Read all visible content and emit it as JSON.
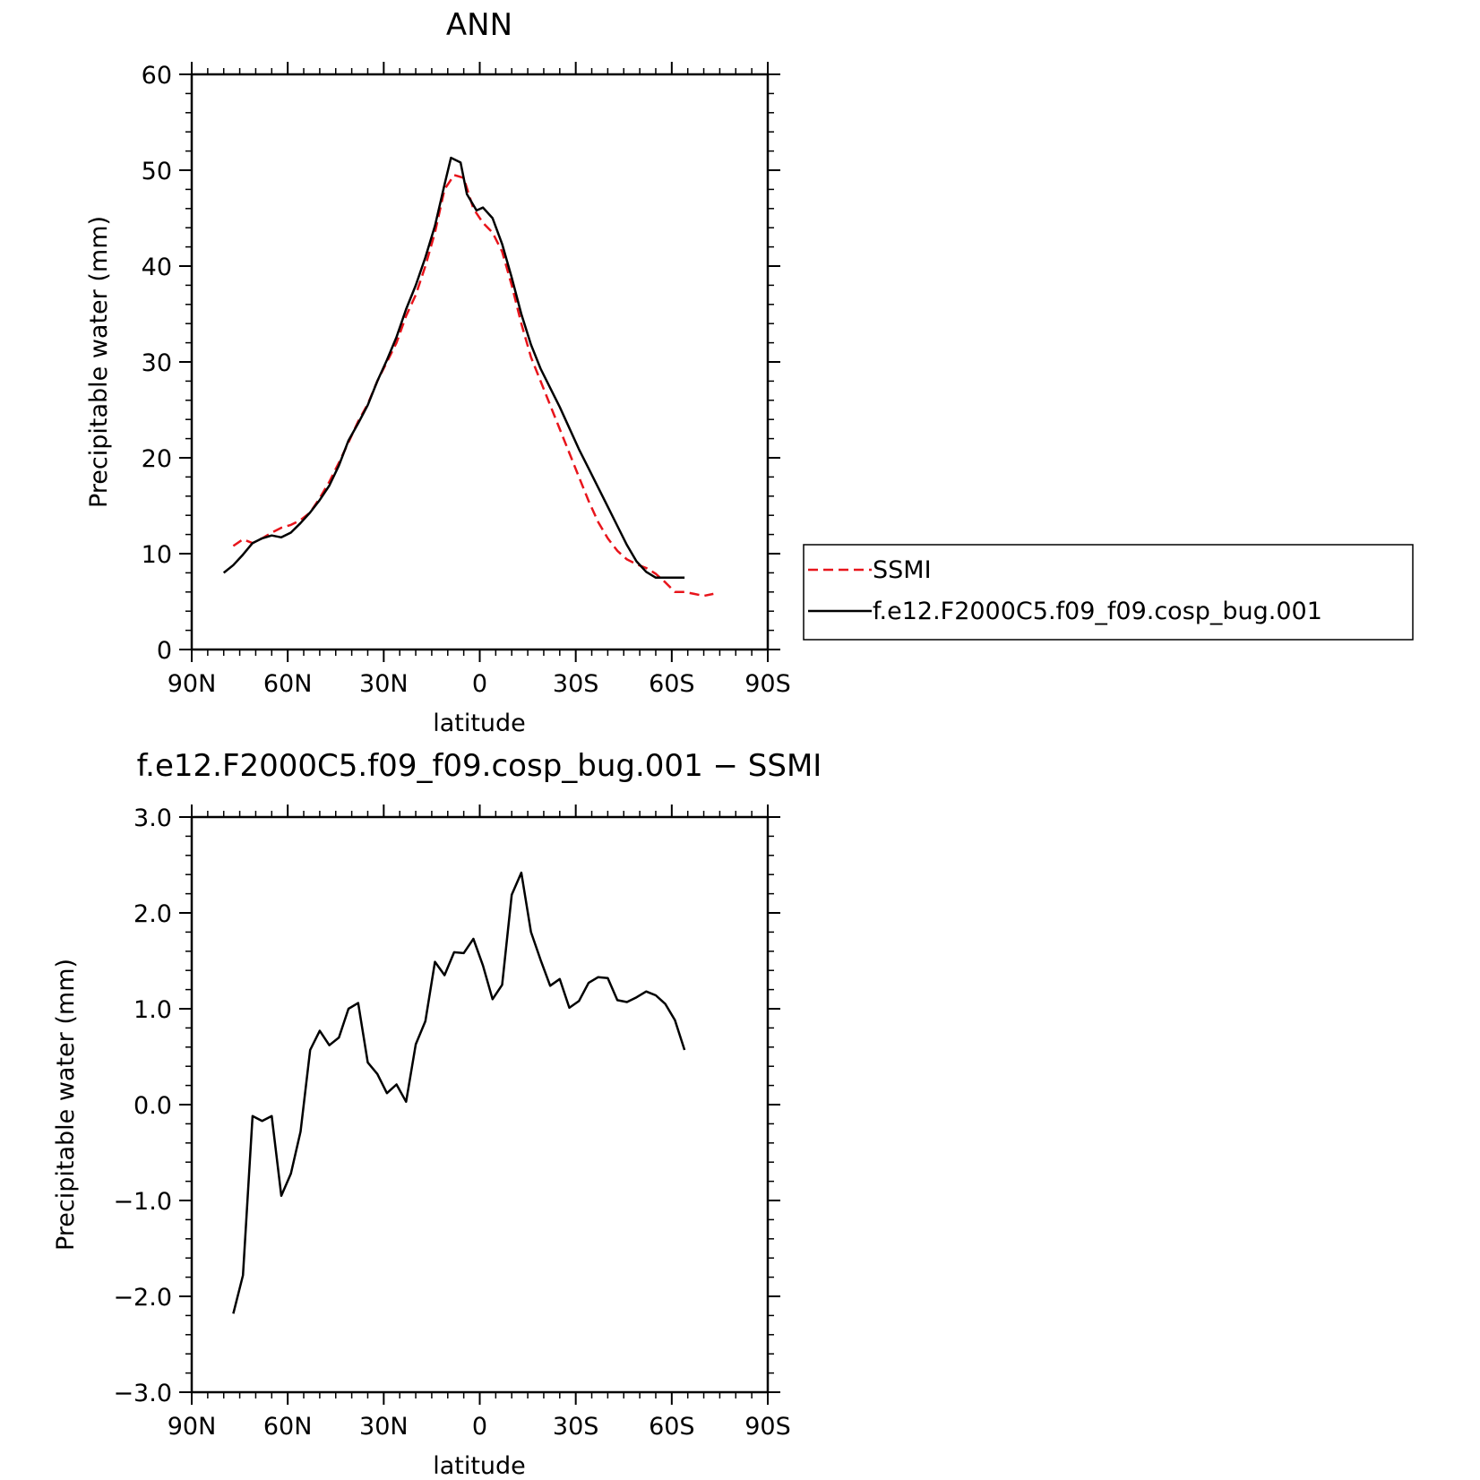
{
  "colors": {
    "ssmi": "#e8141b",
    "model": "#000000"
  },
  "chart_data": [
    {
      "type": "line",
      "title": "ANN",
      "xlabel": "latitude",
      "ylabel": "Precipitable water (mm)",
      "xlim": [
        90,
        -90
      ],
      "ylim": [
        0,
        60
      ],
      "xticks": [
        90,
        60,
        30,
        0,
        -30,
        -60,
        -90
      ],
      "xtick_labels": [
        "90N",
        "60N",
        "30N",
        "0",
        "30S",
        "60S",
        "90S"
      ],
      "yticks": [
        0,
        10,
        20,
        30,
        40,
        50,
        60
      ],
      "ytick_labels": [
        "0",
        "10",
        "20",
        "30",
        "40",
        "50",
        "60"
      ],
      "legend": {
        "placement": "right",
        "entries": [
          "SSMI",
          "f.e12.F2000C5.f09_f09.cosp_bug.001"
        ]
      },
      "series": [
        {
          "name": "SSMI",
          "style": "dashed",
          "x": [
            77,
            74,
            71,
            68,
            65,
            62,
            59,
            56,
            53,
            50,
            47,
            44,
            41,
            38,
            35,
            32,
            29,
            26,
            23,
            20,
            17,
            14,
            11,
            8,
            5,
            2,
            -1,
            -4,
            -7,
            -10,
            -13,
            -16,
            -19,
            -22,
            -25,
            -28,
            -31,
            -34,
            -37,
            -40,
            -43,
            -46,
            -49,
            -52,
            -55,
            -58,
            -61,
            -64,
            -67,
            -70,
            -73
          ],
          "y": [
            10.8,
            11.5,
            11.1,
            11.6,
            12.2,
            12.7,
            13.0,
            13.5,
            14.3,
            15.8,
            17.5,
            19.5,
            21.6,
            23.8,
            25.6,
            28.0,
            30.0,
            32.0,
            34.8,
            37.0,
            40.0,
            43.5,
            48.0,
            49.5,
            49.2,
            46.0,
            44.5,
            43.5,
            41.5,
            38.0,
            34.0,
            30.5,
            28.0,
            25.5,
            23.0,
            20.5,
            18.0,
            15.5,
            13.3,
            11.6,
            10.3,
            9.4,
            8.9,
            8.5,
            7.9,
            7.0,
            6.0,
            6.0,
            5.8,
            5.6,
            5.8
          ]
        },
        {
          "name": "f.e12.F2000C5.f09_f09.cosp_bug.001",
          "style": "solid",
          "x": [
            80,
            77,
            74,
            71,
            68,
            65,
            62,
            59,
            56,
            53,
            50,
            47,
            44,
            41,
            38,
            35,
            32,
            29,
            26,
            23,
            20,
            17,
            14,
            11,
            9,
            6,
            4,
            1,
            -1,
            -4,
            -7,
            -10,
            -13,
            -16,
            -19,
            -22,
            -25,
            -28,
            -31,
            -34,
            -37,
            -40,
            -43,
            -46,
            -49,
            -52,
            -55,
            -58,
            -61,
            -64
          ],
          "y": [
            8.0,
            8.8,
            9.9,
            11.1,
            11.6,
            11.9,
            11.7,
            12.2,
            13.2,
            14.3,
            15.6,
            17.1,
            19.2,
            21.8,
            23.6,
            25.5,
            28.0,
            30.2,
            32.6,
            35.5,
            38.0,
            40.9,
            44.2,
            48.5,
            51.3,
            50.8,
            47.5,
            45.8,
            46.1,
            45.0,
            42.3,
            38.8,
            35.0,
            31.8,
            29.3,
            27.3,
            25.3,
            23.1,
            20.9,
            18.9,
            16.9,
            14.9,
            12.9,
            10.9,
            9.2,
            8.1,
            7.5,
            7.5,
            7.5,
            7.5
          ]
        }
      ]
    },
    {
      "type": "line",
      "title": "f.e12.F2000C5.f09_f09.cosp_bug.001 − SSMI",
      "xlabel": "latitude",
      "ylabel": "Precipitable water (mm)",
      "xlim": [
        90,
        -90
      ],
      "ylim": [
        -3,
        3
      ],
      "xticks": [
        90,
        60,
        30,
        0,
        -30,
        -60,
        -90
      ],
      "xtick_labels": [
        "90N",
        "60N",
        "30N",
        "0",
        "30S",
        "60S",
        "90S"
      ],
      "yticks": [
        -3,
        -2,
        -1,
        0,
        1,
        2,
        3
      ],
      "ytick_labels": [
        "−3.0",
        "−2.0",
        "−1.0",
        "0.0",
        "1.0",
        "2.0",
        "3.0"
      ],
      "series": [
        {
          "style": "solid",
          "x": [
            77,
            74,
            71,
            68,
            65,
            62,
            59,
            56,
            53,
            50,
            47,
            44,
            41,
            38,
            35,
            32,
            29,
            26,
            23,
            20,
            17,
            14,
            11,
            8,
            5,
            2,
            -1,
            -4,
            -7,
            -10,
            -13,
            -16,
            -19,
            -22,
            -25,
            -28,
            -31,
            -34,
            -37,
            -40,
            -43,
            -46,
            -49,
            -52,
            -55,
            -58,
            -61,
            -64
          ],
          "y": [
            -2.18,
            -1.78,
            -0.12,
            -0.17,
            -0.12,
            -0.95,
            -0.72,
            -0.28,
            0.57,
            0.77,
            0.62,
            0.7,
            1.0,
            1.06,
            0.44,
            0.32,
            0.12,
            0.21,
            0.03,
            0.63,
            0.87,
            1.49,
            1.35,
            1.59,
            1.58,
            1.73,
            1.45,
            1.1,
            1.25,
            2.19,
            2.42,
            1.8,
            1.51,
            1.24,
            1.31,
            1.01,
            1.08,
            1.27,
            1.33,
            1.32,
            1.09,
            1.07,
            1.12,
            1.18,
            1.14,
            1.05,
            0.88,
            0.57
          ]
        }
      ]
    }
  ]
}
